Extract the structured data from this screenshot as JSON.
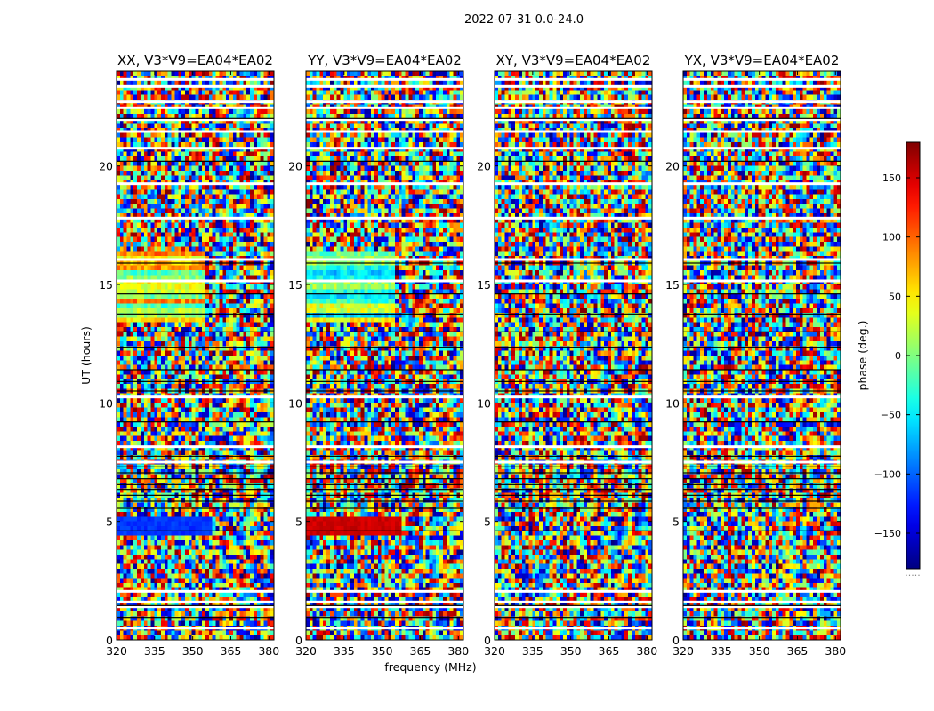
{
  "figure": {
    "suptitle": "2022-07-31 0.0-24.0",
    "xlabel": "frequency (MHz)",
    "ylabel": "UT (hours)",
    "colorbar_label": "phase (deg.)",
    "colorbar_note": "....."
  },
  "chart_data": {
    "type": "heatmap",
    "colormap": "jet",
    "panels": [
      {
        "title": "XX, V3*V9=EA04*EA02",
        "product": "XX"
      },
      {
        "title": "YY, V3*V9=EA04*EA02",
        "product": "YY"
      },
      {
        "title": "XY, V3*V9=EA04*EA02",
        "product": "XY"
      },
      {
        "title": "YX, V3*V9=EA04*EA02",
        "product": "YX"
      }
    ],
    "xlim": [
      320,
      382
    ],
    "xticks": [
      320,
      335,
      350,
      365,
      380
    ],
    "xtick_labels": [
      "320",
      "335",
      "350",
      "365",
      "380"
    ],
    "ylim": [
      0,
      24
    ],
    "yticks": [
      0,
      5,
      10,
      15,
      20
    ],
    "ytick_labels": [
      "0",
      "5",
      "10",
      "15",
      "20"
    ],
    "clim": [
      -180,
      180
    ],
    "cbar_ticks": [
      150,
      100,
      50,
      0,
      -50,
      -100,
      -150
    ],
    "cbar_tick_labels": [
      "150",
      "100",
      "50",
      "0",
      "−50",
      "−100",
      "−150"
    ],
    "blank_ut_bands": [
      0.5,
      1.4,
      1.6,
      2.05,
      7.5,
      8.15,
      10.25,
      15.15,
      16.05,
      17.8,
      19.25,
      20.75,
      21.45,
      21.95,
      22.45,
      22.7,
      23.35,
      23.65
    ],
    "dark_ut_bands": [
      0.95,
      1.45,
      4.6,
      5.55,
      5.85,
      6.1,
      6.35,
      6.55,
      6.8,
      7.05,
      7.3,
      7.75,
      9.2,
      10.5,
      10.9,
      11.4,
      12.35,
      13.0,
      13.75,
      14.6,
      15.9,
      20.2,
      22.0
    ]
  }
}
